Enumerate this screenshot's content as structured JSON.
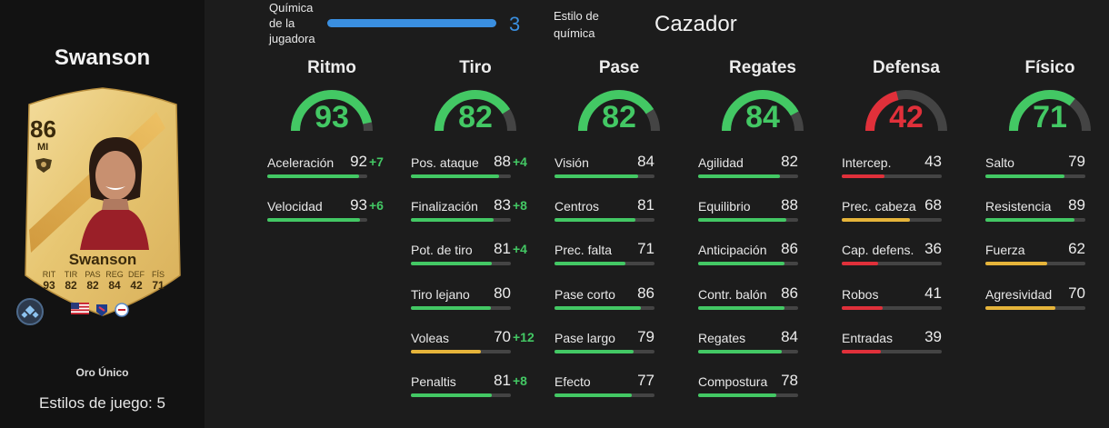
{
  "colors": {
    "high": "#43c864",
    "mid": "#e6b43a",
    "low": "#e0303a",
    "track": "#444444",
    "accent": "#3a8fe0"
  },
  "player": {
    "name": "Swanson",
    "card": {
      "rating": "86",
      "position": "MI",
      "name": "Swanson",
      "stats": [
        {
          "label": "RIT",
          "value": "93"
        },
        {
          "label": "TIR",
          "value": "82"
        },
        {
          "label": "PAS",
          "value": "82"
        },
        {
          "label": "REG",
          "value": "84"
        },
        {
          "label": "DEF",
          "value": "42"
        },
        {
          "label": "FÍS",
          "value": "71"
        }
      ],
      "icons": [
        "club-crest-icon",
        "usa-flag-icon",
        "league-icon",
        "team-badge-icon"
      ]
    },
    "card_type": "Oro Único",
    "playstyles": "Estilos de juego: 5"
  },
  "chemistry": {
    "label": "Química de la jugadora",
    "value": "3",
    "fill": 1.0
  },
  "chem_style": {
    "label": "Estilo de química",
    "value": "Cazador"
  },
  "columns": [
    {
      "title": "Ritmo",
      "value": 93,
      "level": "high",
      "stats": [
        {
          "label": "Aceleración",
          "value": 92,
          "boost": "+7",
          "level": "high"
        },
        {
          "label": "Velocidad",
          "value": 93,
          "boost": "+6",
          "level": "high"
        }
      ]
    },
    {
      "title": "Tiro",
      "value": 82,
      "level": "high",
      "stats": [
        {
          "label": "Pos. ataque",
          "value": 88,
          "boost": "+4",
          "level": "high"
        },
        {
          "label": "Finalización",
          "value": 83,
          "boost": "+8",
          "level": "high"
        },
        {
          "label": "Pot. de tiro",
          "value": 81,
          "boost": "+4",
          "level": "high"
        },
        {
          "label": "Tiro lejano",
          "value": 80,
          "boost": "",
          "level": "high"
        },
        {
          "label": "Voleas",
          "value": 70,
          "boost": "+12",
          "level": "mid"
        },
        {
          "label": "Penaltis",
          "value": 81,
          "boost": "+8",
          "level": "high"
        }
      ]
    },
    {
      "title": "Pase",
      "value": 82,
      "level": "high",
      "stats": [
        {
          "label": "Visión",
          "value": 84,
          "boost": "",
          "level": "high"
        },
        {
          "label": "Centros",
          "value": 81,
          "boost": "",
          "level": "high"
        },
        {
          "label": "Prec. falta",
          "value": 71,
          "boost": "",
          "level": "high"
        },
        {
          "label": "Pase corto",
          "value": 86,
          "boost": "",
          "level": "high"
        },
        {
          "label": "Pase largo",
          "value": 79,
          "boost": "",
          "level": "high"
        },
        {
          "label": "Efecto",
          "value": 77,
          "boost": "",
          "level": "high"
        }
      ]
    },
    {
      "title": "Regates",
      "value": 84,
      "level": "high",
      "stats": [
        {
          "label": "Agilidad",
          "value": 82,
          "boost": "",
          "level": "high"
        },
        {
          "label": "Equilibrio",
          "value": 88,
          "boost": "",
          "level": "high"
        },
        {
          "label": "Anticipación",
          "value": 86,
          "boost": "",
          "level": "high"
        },
        {
          "label": "Contr. balón",
          "value": 86,
          "boost": "",
          "level": "high"
        },
        {
          "label": "Regates",
          "value": 84,
          "boost": "",
          "level": "high"
        },
        {
          "label": "Compostura",
          "value": 78,
          "boost": "",
          "level": "high"
        }
      ]
    },
    {
      "title": "Defensa",
      "value": 42,
      "level": "low",
      "stats": [
        {
          "label": "Intercep.",
          "value": 43,
          "boost": "",
          "level": "low"
        },
        {
          "label": "Prec. cabeza",
          "value": 68,
          "boost": "",
          "level": "mid"
        },
        {
          "label": "Cap. defens.",
          "value": 36,
          "boost": "",
          "level": "low"
        },
        {
          "label": "Robos",
          "value": 41,
          "boost": "",
          "level": "low"
        },
        {
          "label": "Entradas",
          "value": 39,
          "boost": "",
          "level": "low"
        }
      ]
    },
    {
      "title": "Físico",
      "value": 71,
      "level": "high",
      "stats": [
        {
          "label": "Salto",
          "value": 79,
          "boost": "",
          "level": "high"
        },
        {
          "label": "Resistencia",
          "value": 89,
          "boost": "",
          "level": "high"
        },
        {
          "label": "Fuerza",
          "value": 62,
          "boost": "",
          "level": "mid"
        },
        {
          "label": "Agresividad",
          "value": 70,
          "boost": "",
          "level": "mid"
        }
      ]
    }
  ]
}
